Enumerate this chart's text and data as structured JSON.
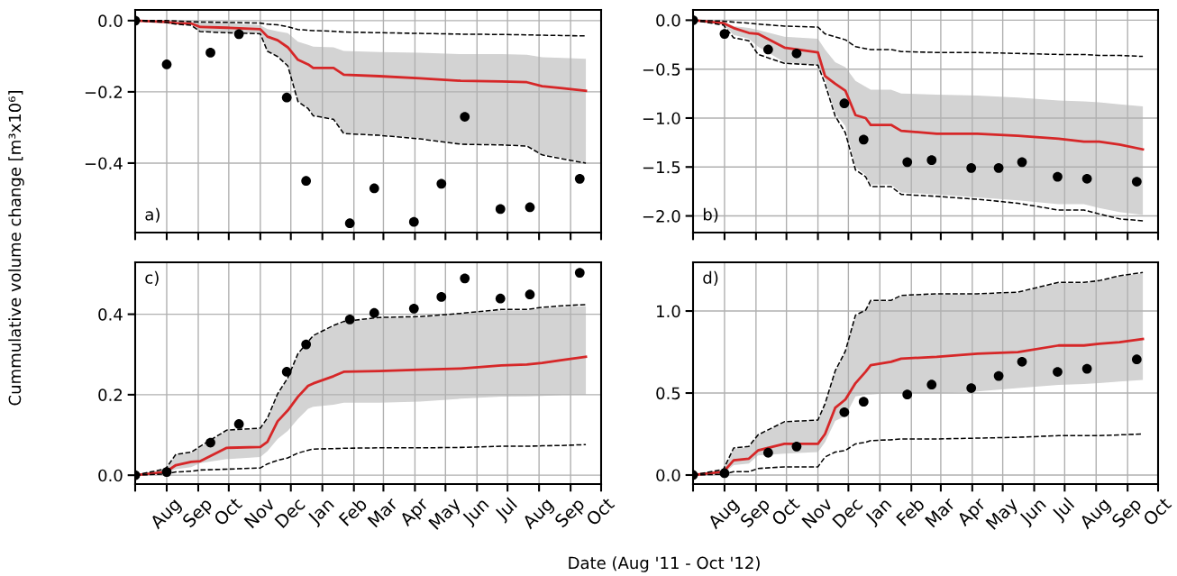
{
  "chart_data": [
    {
      "type": "line",
      "ylabel": "Cummulative volume change [m³x10⁶]",
      "annotations": [
        "a)"
      ],
      "grid": true,
      "x": [
        "2011-07-01",
        "2011-07-31",
        "2011-08-10",
        "2011-08-25",
        "2011-09-03",
        "2011-09-29",
        "2011-11-01",
        "2011-11-08",
        "2011-11-18",
        "2011-11-28",
        "2011-12-08",
        "2011-12-18",
        "2011-12-23",
        "2012-01-12",
        "2012-01-22",
        "2012-02-26",
        "2012-04-06",
        "2012-05-16",
        "2012-06-25",
        "2012-07-20",
        "2012-08-04",
        "2012-08-24",
        "2012-09-16"
      ],
      "xlim": [
        "2011-07-01",
        "2012-10-01"
      ],
      "tick_labels": "y",
      "xticks": [
        {
          "value": "2011-07-01",
          "label": null
        },
        {
          "value": "2011-08-01",
          "label": null
        },
        {
          "value": "2011-09-01",
          "label": null
        },
        {
          "value": "2011-10-01",
          "label": null
        },
        {
          "value": "2011-11-01",
          "label": null
        },
        {
          "value": "2011-12-01",
          "label": null
        },
        {
          "value": "2012-01-01",
          "label": null
        },
        {
          "value": "2012-02-01",
          "label": null
        },
        {
          "value": "2012-03-01",
          "label": null
        },
        {
          "value": "2012-04-01",
          "label": null
        },
        {
          "value": "2012-05-01",
          "label": null
        },
        {
          "value": "2012-06-01",
          "label": null
        },
        {
          "value": "2012-07-01",
          "label": null
        },
        {
          "value": "2012-08-01",
          "label": null
        },
        {
          "value": "2012-09-01",
          "label": null
        },
        {
          "value": "2012-10-01",
          "label": null
        }
      ],
      "ylim": [
        -0.595,
        0.03
      ],
      "yticks": [
        {
          "value": 0,
          "label": "0.0"
        },
        {
          "value": -0.2,
          "label": "−0.2"
        },
        {
          "value": -0.4,
          "label": "−0.4"
        }
      ],
      "series": [
        {
          "color": "#d62728",
          "values": [
            0,
            -0.004,
            -0.007,
            -0.008,
            -0.018,
            -0.02,
            -0.024,
            -0.045,
            -0.055,
            -0.075,
            -0.11,
            -0.123,
            -0.133,
            -0.133,
            -0.152,
            -0.156,
            -0.162,
            -0.169,
            -0.171,
            -0.173,
            -0.184,
            -0.19,
            -0.197
          ],
          "lower": [
            0,
            -0.005,
            -0.01,
            -0.012,
            -0.03,
            -0.033,
            -0.036,
            -0.085,
            -0.1,
            -0.125,
            -0.225,
            -0.245,
            -0.265,
            -0.275,
            -0.315,
            -0.32,
            -0.33,
            -0.345,
            -0.347,
            -0.35,
            -0.375,
            -0.385,
            -0.398
          ],
          "upper": [
            0,
            -0.003,
            -0.004,
            -0.005,
            -0.006,
            -0.006,
            -0.013,
            -0.024,
            -0.03,
            -0.035,
            -0.059,
            -0.068,
            -0.073,
            -0.075,
            -0.085,
            -0.088,
            -0.09,
            -0.094,
            -0.094,
            -0.096,
            -0.103,
            -0.105,
            -0.107
          ]
        },
        {
          "color": "#000000",
          "line_style": "dashed",
          "values": [
            0,
            0,
            -0.001,
            -0.003,
            -0.004,
            -0.005,
            -0.007,
            -0.01,
            -0.012,
            -0.017,
            -0.025,
            -0.027,
            -0.028,
            -0.03,
            -0.032,
            -0.034,
            -0.036,
            -0.038,
            -0.039,
            -0.04,
            -0.041,
            -0.042,
            -0.043
          ]
        },
        {
          "color": "#000000",
          "line_style": "dashed",
          "values": [
            0,
            -0.005,
            -0.01,
            -0.013,
            -0.031,
            -0.034,
            -0.037,
            -0.086,
            -0.101,
            -0.127,
            -0.227,
            -0.247,
            -0.267,
            -0.277,
            -0.317,
            -0.322,
            -0.332,
            -0.347,
            -0.349,
            -0.352,
            -0.377,
            -0.388,
            -0.4
          ]
        },
        {
          "type": "scatter",
          "color": "#000000",
          "marker": "circle",
          "x": [
            "2011-07-01",
            "2011-08-01",
            "2011-09-13",
            "2011-10-11",
            "2011-11-27",
            "2011-12-16",
            "2012-01-28",
            "2012-02-21",
            "2012-03-31",
            "2012-04-27",
            "2012-05-20",
            "2012-06-24",
            "2012-07-23",
            "2012-09-10"
          ],
          "values": [
            0,
            -0.123,
            -0.09,
            -0.038,
            -0.216,
            -0.45,
            -0.569,
            -0.471,
            -0.565,
            -0.458,
            -0.27,
            -0.529,
            -0.524,
            -0.444
          ]
        }
      ]
    },
    {
      "type": "line",
      "annotations": [
        "b)"
      ],
      "grid": true,
      "x": [
        "2011-07-01",
        "2011-07-31",
        "2011-08-10",
        "2011-08-25",
        "2011-09-03",
        "2011-09-29",
        "2011-11-01",
        "2011-11-08",
        "2011-11-18",
        "2011-11-28",
        "2011-12-08",
        "2011-12-18",
        "2011-12-23",
        "2012-01-12",
        "2012-01-22",
        "2012-02-26",
        "2012-04-06",
        "2012-05-16",
        "2012-06-25",
        "2012-07-20",
        "2012-08-04",
        "2012-08-24",
        "2012-09-16"
      ],
      "xlim": [
        "2011-07-01",
        "2012-10-01"
      ],
      "tick_labels": "y",
      "xticks": [
        {
          "value": "2011-07-01",
          "label": null
        },
        {
          "value": "2011-08-01",
          "label": null
        },
        {
          "value": "2011-09-01",
          "label": null
        },
        {
          "value": "2011-10-01",
          "label": null
        },
        {
          "value": "2011-11-01",
          "label": null
        },
        {
          "value": "2011-12-01",
          "label": null
        },
        {
          "value": "2012-01-01",
          "label": null
        },
        {
          "value": "2012-02-01",
          "label": null
        },
        {
          "value": "2012-03-01",
          "label": null
        },
        {
          "value": "2012-04-01",
          "label": null
        },
        {
          "value": "2012-05-01",
          "label": null
        },
        {
          "value": "2012-06-01",
          "label": null
        },
        {
          "value": "2012-07-01",
          "label": null
        },
        {
          "value": "2012-08-01",
          "label": null
        },
        {
          "value": "2012-09-01",
          "label": null
        },
        {
          "value": "2012-10-01",
          "label": null
        }
      ],
      "ylim": [
        -2.17,
        0.105
      ],
      "yticks": [
        {
          "value": 0,
          "label": "0.0"
        },
        {
          "value": -0.5,
          "label": "−0.5"
        },
        {
          "value": -1.0,
          "label": "−1.0"
        },
        {
          "value": -1.5,
          "label": "−1.5"
        },
        {
          "value": -2.0,
          "label": "−2.0"
        }
      ],
      "series": [
        {
          "color": "#d62728",
          "values": [
            0,
            -0.03,
            -0.08,
            -0.13,
            -0.14,
            -0.28,
            -0.33,
            -0.57,
            -0.65,
            -0.72,
            -0.97,
            -1.0,
            -1.07,
            -1.07,
            -1.13,
            -1.16,
            -1.16,
            -1.18,
            -1.21,
            -1.24,
            -1.24,
            -1.27,
            -1.32
          ],
          "lower": [
            0,
            -0.04,
            -0.15,
            -0.19,
            -0.27,
            -0.43,
            -0.46,
            -0.6,
            -0.95,
            -1.08,
            -1.5,
            -1.58,
            -1.68,
            -1.68,
            -1.76,
            -1.78,
            -1.81,
            -1.84,
            -1.88,
            -1.88,
            -1.92,
            -1.96,
            -1.99
          ],
          "upper": [
            0,
            -0.02,
            -0.06,
            -0.08,
            -0.1,
            -0.17,
            -0.19,
            -0.3,
            -0.43,
            -0.48,
            -0.62,
            -0.68,
            -0.71,
            -0.71,
            -0.75,
            -0.76,
            -0.77,
            -0.79,
            -0.82,
            -0.83,
            -0.84,
            -0.86,
            -0.88
          ]
        },
        {
          "color": "#000000",
          "line_style": "dashed",
          "values": [
            0,
            -0.01,
            -0.02,
            -0.03,
            -0.04,
            -0.06,
            -0.07,
            -0.14,
            -0.17,
            -0.2,
            -0.27,
            -0.29,
            -0.3,
            -0.3,
            -0.32,
            -0.33,
            -0.33,
            -0.34,
            -0.35,
            -0.35,
            -0.36,
            -0.36,
            -0.37
          ]
        },
        {
          "color": "#000000",
          "line_style": "dashed",
          "values": [
            0,
            -0.05,
            -0.18,
            -0.21,
            -0.35,
            -0.44,
            -0.46,
            -0.65,
            -0.98,
            -1.15,
            -1.53,
            -1.6,
            -1.7,
            -1.7,
            -1.78,
            -1.8,
            -1.83,
            -1.87,
            -1.94,
            -1.94,
            -1.98,
            -2.03,
            -2.05
          ]
        },
        {
          "type": "scatter",
          "color": "#000000",
          "marker": "circle",
          "x": [
            "2011-07-01",
            "2011-08-01",
            "2011-09-13",
            "2011-10-11",
            "2011-11-27",
            "2011-12-16",
            "2012-01-28",
            "2012-02-21",
            "2012-03-31",
            "2012-04-27",
            "2012-05-20",
            "2012-06-24",
            "2012-07-23",
            "2012-09-10"
          ],
          "values": [
            0,
            -0.14,
            -0.3,
            -0.34,
            -0.85,
            -1.22,
            -1.45,
            -1.43,
            -1.51,
            -1.51,
            -1.45,
            -1.6,
            -1.62,
            -1.65
          ]
        }
      ]
    },
    {
      "type": "line",
      "annotations": [
        "c)"
      ],
      "grid": true,
      "xlabel": "Date (Aug '11 - Oct '12)",
      "x": [
        "2011-07-01",
        "2011-07-31",
        "2011-08-10",
        "2011-08-25",
        "2011-09-03",
        "2011-09-29",
        "2011-11-01",
        "2011-11-08",
        "2011-11-18",
        "2011-11-28",
        "2011-12-08",
        "2011-12-18",
        "2011-12-23",
        "2012-01-12",
        "2012-01-22",
        "2012-02-26",
        "2012-04-06",
        "2012-05-16",
        "2012-06-25",
        "2012-07-20",
        "2012-08-04",
        "2012-08-24",
        "2012-09-16"
      ],
      "xlim": [
        "2011-07-01",
        "2012-10-01"
      ],
      "xticks": [
        {
          "value": "2011-07-01",
          "label": null
        },
        {
          "value": "2011-08-01",
          "label": "Aug"
        },
        {
          "value": "2011-09-01",
          "label": "Sep"
        },
        {
          "value": "2011-10-01",
          "label": "Oct"
        },
        {
          "value": "2011-11-01",
          "label": "Nov"
        },
        {
          "value": "2011-12-01",
          "label": "Dec"
        },
        {
          "value": "2012-01-01",
          "label": "Jan"
        },
        {
          "value": "2012-02-01",
          "label": "Feb"
        },
        {
          "value": "2012-03-01",
          "label": "Mar"
        },
        {
          "value": "2012-04-01",
          "label": "Apr"
        },
        {
          "value": "2012-05-01",
          "label": "May"
        },
        {
          "value": "2012-06-01",
          "label": "Jun"
        },
        {
          "value": "2012-07-01",
          "label": "Jul"
        },
        {
          "value": "2012-08-01",
          "label": "Aug"
        },
        {
          "value": "2012-09-01",
          "label": "Sep"
        },
        {
          "value": "2012-10-01",
          "label": "Oct"
        }
      ],
      "ylim": [
        -0.022,
        0.529
      ],
      "yticks": [
        {
          "value": 0,
          "label": "0.0"
        },
        {
          "value": 0.2,
          "label": "0.2"
        },
        {
          "value": 0.4,
          "label": "0.4"
        }
      ],
      "series": [
        {
          "color": "#d62728",
          "values": [
            0,
            0.008,
            0.025,
            0.033,
            0.035,
            0.068,
            0.07,
            0.083,
            0.134,
            0.161,
            0.195,
            0.222,
            0.228,
            0.246,
            0.257,
            0.259,
            0.262,
            0.265,
            0.273,
            0.275,
            0.279,
            0.286,
            0.294
          ],
          "lower": [
            0,
            0.005,
            0.015,
            0.02,
            0.03,
            0.04,
            0.045,
            0.06,
            0.09,
            0.11,
            0.14,
            0.165,
            0.17,
            0.175,
            0.18,
            0.18,
            0.183,
            0.19,
            0.195,
            0.196,
            0.197,
            0.199,
            0.2
          ],
          "upper": [
            0,
            0.015,
            0.05,
            0.055,
            0.07,
            0.11,
            0.115,
            0.14,
            0.2,
            0.24,
            0.3,
            0.33,
            0.345,
            0.37,
            0.38,
            0.39,
            0.392,
            0.4,
            0.41,
            0.41,
            0.415,
            0.418,
            0.42
          ]
        },
        {
          "color": "#000000",
          "line_style": "dashed",
          "values": [
            0,
            0.016,
            0.052,
            0.057,
            0.072,
            0.112,
            0.117,
            0.142,
            0.202,
            0.242,
            0.302,
            0.332,
            0.347,
            0.372,
            0.382,
            0.392,
            0.394,
            0.402,
            0.412,
            0.412,
            0.417,
            0.421,
            0.424
          ]
        },
        {
          "color": "#000000",
          "line_style": "dashed",
          "values": [
            0,
            0.003,
            0.008,
            0.01,
            0.013,
            0.015,
            0.018,
            0.028,
            0.037,
            0.043,
            0.055,
            0.062,
            0.065,
            0.066,
            0.067,
            0.068,
            0.068,
            0.069,
            0.072,
            0.072,
            0.073,
            0.074,
            0.076
          ]
        },
        {
          "type": "scatter",
          "color": "#000000",
          "marker": "circle",
          "x": [
            "2011-07-01",
            "2011-08-01",
            "2011-09-13",
            "2011-10-11",
            "2011-11-27",
            "2011-12-16",
            "2012-01-28",
            "2012-02-21",
            "2012-03-31",
            "2012-04-27",
            "2012-05-20",
            "2012-06-24",
            "2012-07-23",
            "2012-09-10"
          ],
          "values": [
            0,
            0.008,
            0.081,
            0.127,
            0.257,
            0.325,
            0.387,
            0.403,
            0.414,
            0.443,
            0.489,
            0.439,
            0.449,
            0.503
          ]
        }
      ]
    },
    {
      "type": "line",
      "annotations": [
        "d)"
      ],
      "grid": true,
      "x": [
        "2011-07-01",
        "2011-07-31",
        "2011-08-10",
        "2011-08-25",
        "2011-09-03",
        "2011-09-29",
        "2011-11-01",
        "2011-11-08",
        "2011-11-18",
        "2011-11-28",
        "2011-12-08",
        "2011-12-18",
        "2011-12-23",
        "2012-01-12",
        "2012-01-22",
        "2012-02-26",
        "2012-04-06",
        "2012-05-16",
        "2012-06-25",
        "2012-07-20",
        "2012-08-04",
        "2012-08-24",
        "2012-09-16"
      ],
      "xlim": [
        "2011-07-01",
        "2012-10-01"
      ],
      "xticks": [
        {
          "value": "2011-07-01",
          "label": null
        },
        {
          "value": "2011-08-01",
          "label": "Aug"
        },
        {
          "value": "2011-09-01",
          "label": "Sep"
        },
        {
          "value": "2011-10-01",
          "label": "Oct"
        },
        {
          "value": "2011-11-01",
          "label": "Nov"
        },
        {
          "value": "2011-12-01",
          "label": "Dec"
        },
        {
          "value": "2012-01-01",
          "label": "Jan"
        },
        {
          "value": "2012-02-01",
          "label": "Feb"
        },
        {
          "value": "2012-03-01",
          "label": "Mar"
        },
        {
          "value": "2012-04-01",
          "label": "Apr"
        },
        {
          "value": "2012-05-01",
          "label": "May"
        },
        {
          "value": "2012-06-01",
          "label": "Jun"
        },
        {
          "value": "2012-07-01",
          "label": "Jul"
        },
        {
          "value": "2012-08-01",
          "label": "Aug"
        },
        {
          "value": "2012-09-01",
          "label": "Sep"
        },
        {
          "value": "2012-10-01",
          "label": "Oct"
        }
      ],
      "ylim": [
        -0.055,
        1.297
      ],
      "yticks": [
        {
          "value": 0,
          "label": "0.0"
        },
        {
          "value": 0.5,
          "label": "0.5"
        },
        {
          "value": 1.0,
          "label": "1.0"
        }
      ],
      "series": [
        {
          "color": "#d62728",
          "values": [
            0,
            0.02,
            0.09,
            0.1,
            0.15,
            0.19,
            0.19,
            0.25,
            0.41,
            0.46,
            0.56,
            0.63,
            0.67,
            0.69,
            0.71,
            0.72,
            0.74,
            0.75,
            0.79,
            0.79,
            0.8,
            0.81,
            0.83
          ],
          "lower": [
            0,
            0.01,
            0.06,
            0.07,
            0.12,
            0.13,
            0.14,
            0.2,
            0.33,
            0.36,
            0.48,
            0.49,
            0.49,
            0.5,
            0.5,
            0.5,
            0.51,
            0.53,
            0.55,
            0.555,
            0.56,
            0.57,
            0.58
          ],
          "upper": [
            0,
            0.03,
            0.16,
            0.17,
            0.24,
            0.32,
            0.33,
            0.43,
            0.63,
            0.75,
            0.97,
            1.0,
            1.06,
            1.06,
            1.09,
            1.1,
            1.1,
            1.11,
            1.17,
            1.17,
            1.18,
            1.21,
            1.23
          ]
        },
        {
          "color": "#000000",
          "line_style": "dashed",
          "values": [
            0,
            0.035,
            0.165,
            0.175,
            0.245,
            0.325,
            0.335,
            0.435,
            0.635,
            0.755,
            0.975,
            1.005,
            1.065,
            1.065,
            1.095,
            1.105,
            1.105,
            1.115,
            1.175,
            1.175,
            1.185,
            1.215,
            1.235
          ]
        },
        {
          "color": "#000000",
          "line_style": "dashed",
          "values": [
            0,
            0.005,
            0.02,
            0.02,
            0.04,
            0.05,
            0.05,
            0.11,
            0.14,
            0.15,
            0.19,
            0.2,
            0.21,
            0.215,
            0.22,
            0.22,
            0.225,
            0.23,
            0.24,
            0.24,
            0.24,
            0.245,
            0.25
          ]
        },
        {
          "type": "scatter",
          "color": "#000000",
          "marker": "circle",
          "x": [
            "2011-07-01",
            "2011-08-01",
            "2011-09-13",
            "2011-10-11",
            "2011-11-27",
            "2011-12-16",
            "2012-01-28",
            "2012-02-21",
            "2012-03-31",
            "2012-04-27",
            "2012-05-20",
            "2012-06-24",
            "2012-07-23",
            "2012-09-10"
          ],
          "values": [
            0,
            0.011,
            0.136,
            0.174,
            0.383,
            0.447,
            0.491,
            0.551,
            0.53,
            0.604,
            0.691,
            0.629,
            0.648,
            0.705
          ]
        }
      ]
    }
  ]
}
